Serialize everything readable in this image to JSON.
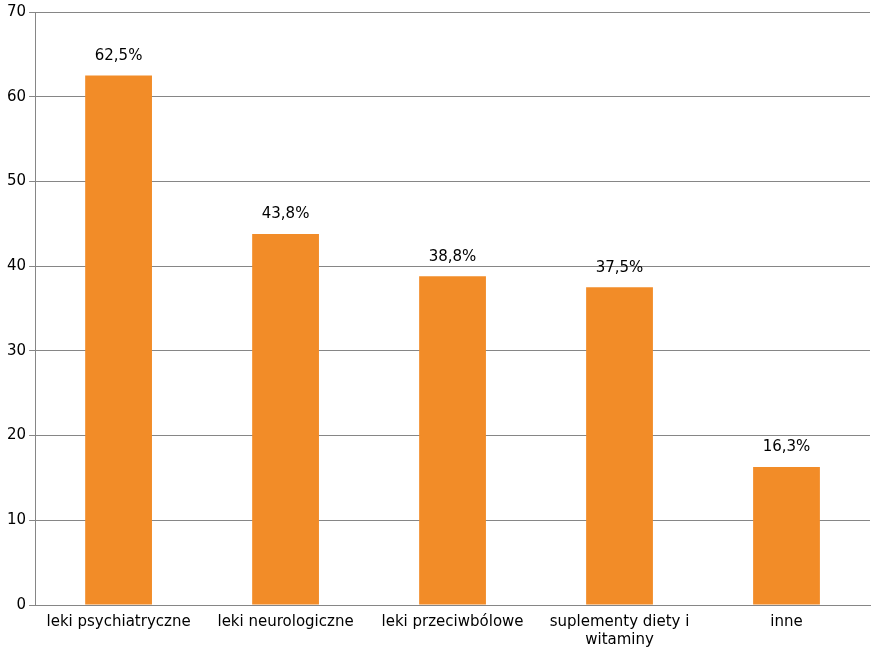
{
  "chart_data": {
    "type": "bar",
    "categories": [
      "leki psychiatryczne",
      "leki neurologiczne",
      "leki przeciwbólowe",
      "suplementy diety i witaminy",
      "inne"
    ],
    "values": [
      62.5,
      43.8,
      38.8,
      37.5,
      16.3
    ],
    "value_labels": [
      "62,5%",
      "43,8%",
      "38,8%",
      "37,5%",
      "16,3%"
    ],
    "color": "#f28c28",
    "ylim": [
      0,
      70
    ],
    "yticks": [
      0,
      10,
      20,
      30,
      40,
      50,
      60,
      70
    ],
    "grid": true,
    "data_labels": true
  }
}
